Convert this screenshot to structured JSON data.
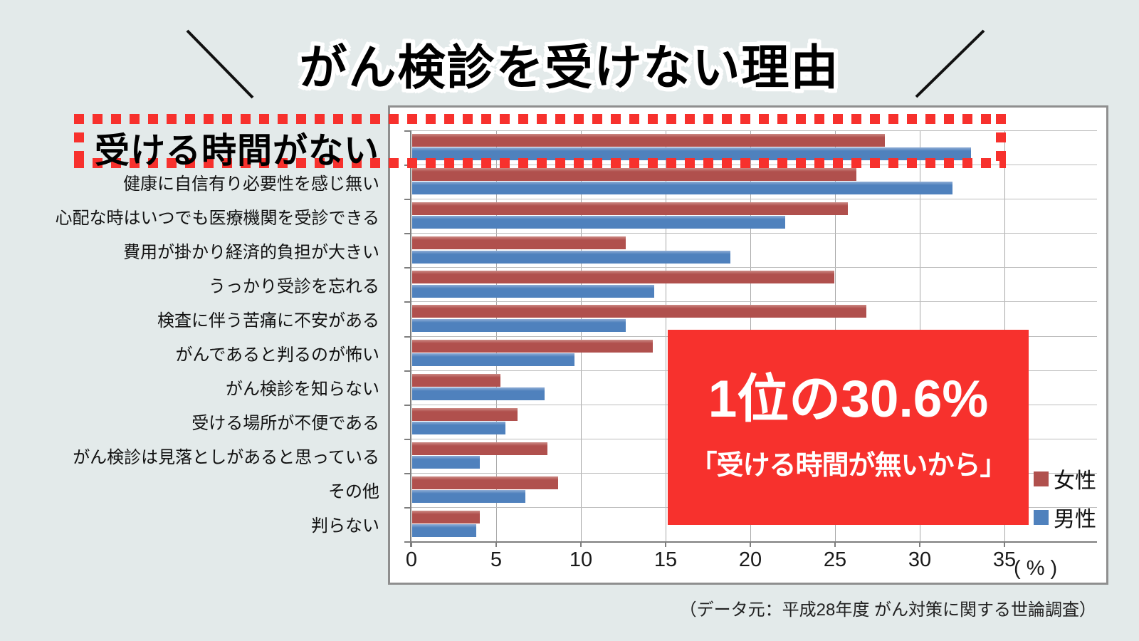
{
  "title": {
    "text": "がん検診を受けない理由"
  },
  "chart_data": {
    "type": "bar",
    "orientation": "horizontal",
    "title": "がん検診を受けない理由",
    "categories": [
      "受ける時間がない",
      "健康に自信有り必要性を感じ無い",
      "心配な時はいつでも医療機関を受診できる",
      "費用が掛かり経済的負担が大きい",
      "うっかり受診を忘れる",
      "検査に伴う苦痛に不安がある",
      "がんであると判るのが怖い",
      "がん検診を知らない",
      "受ける場所が不便である",
      "がん検診は見落としがあると思っている",
      "その他",
      "判らない"
    ],
    "series": [
      {
        "name": "女性",
        "color": "#b0504d",
        "top_highlight": "#cc8a84",
        "values": [
          27.9,
          26.2,
          25.7,
          12.6,
          24.9,
          26.8,
          14.2,
          5.2,
          6.2,
          8.0,
          8.6,
          4.0
        ]
      },
      {
        "name": "男性",
        "color": "#4f81bd",
        "top_highlight": "#8fadd6",
        "values": [
          33.0,
          31.9,
          22.0,
          18.8,
          14.3,
          12.6,
          9.6,
          7.8,
          5.5,
          4.0,
          6.7,
          3.8
        ]
      }
    ],
    "ticks": [
      0,
      5,
      10,
      15,
      20,
      25,
      30,
      35
    ],
    "xlim": [
      0,
      40.5
    ],
    "xlabel_unit": "( % )",
    "grid": true,
    "legend_position": "right-middle"
  },
  "highlight": {
    "emphasized_category": "受ける時間がない",
    "callout": {
      "line1": "1位の30.6%",
      "line2": "「受ける時間が無いから」",
      "bg_color": "#f7312d",
      "text_color": "#ffffff"
    }
  },
  "source_note": "（データ元：平成28年度 がん対策に関する世論調査）",
  "colors": {
    "background": "#e3eaea",
    "accent_red": "#f7312d",
    "grid_line": "#b3b3b3",
    "axis_line": "#7e7e7e",
    "panel_border": "#8f8f8f"
  }
}
